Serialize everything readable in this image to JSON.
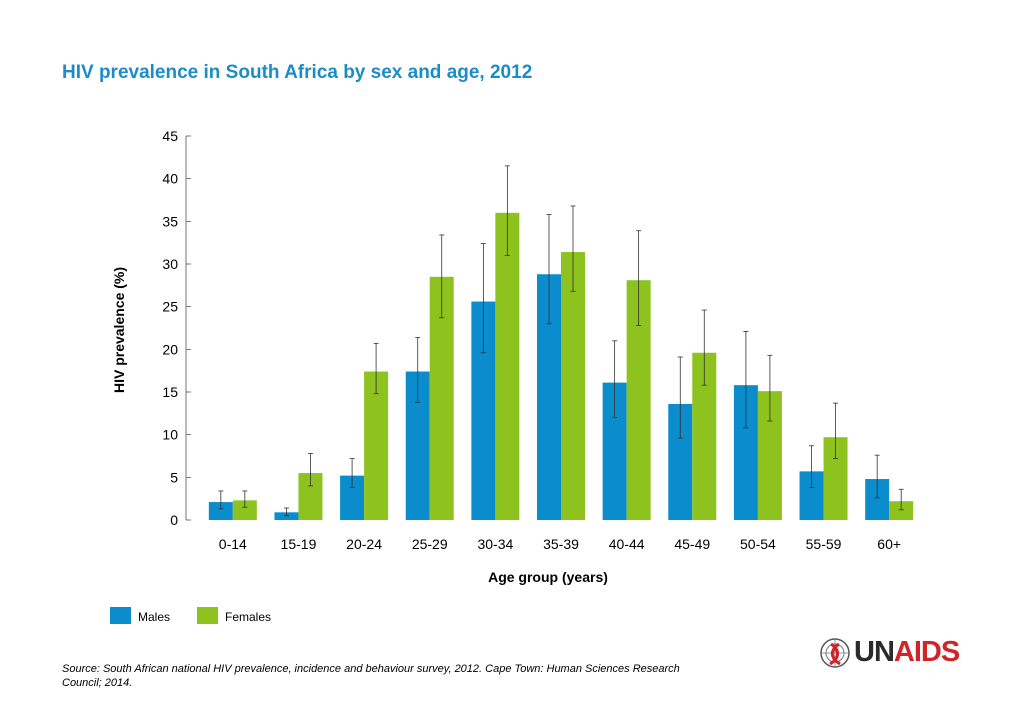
{
  "chart_data": {
    "type": "bar",
    "title": "HIV prevalence in South Africa by sex and age, 2012",
    "xlabel": "Age group (years)",
    "ylabel": "HIV prevalence (%)",
    "ylim": [
      0,
      45
    ],
    "yticks": [
      0,
      5,
      10,
      15,
      20,
      25,
      30,
      35,
      40,
      45
    ],
    "categories": [
      "0-14",
      "15-19",
      "20-24",
      "25-29",
      "30-34",
      "35-39",
      "40-44",
      "45-49",
      "50-54",
      "55-59",
      "60+"
    ],
    "series": [
      {
        "name": "Males",
        "color": "#0a8ccd",
        "values": [
          2.1,
          0.9,
          5.2,
          17.4,
          25.6,
          28.8,
          16.1,
          13.6,
          15.8,
          5.7,
          4.8
        ],
        "error_low": [
          1.3,
          0.5,
          3.8,
          13.8,
          19.6,
          23.0,
          12.0,
          9.6,
          10.8,
          3.8,
          2.6
        ],
        "error_high": [
          3.4,
          1.4,
          7.2,
          21.4,
          32.4,
          35.8,
          21.0,
          19.1,
          22.1,
          8.7,
          7.6
        ]
      },
      {
        "name": "Females",
        "color": "#8dc21f",
        "values": [
          2.3,
          5.5,
          17.4,
          28.5,
          36.0,
          31.4,
          28.1,
          19.6,
          15.1,
          9.7,
          2.2
        ],
        "error_low": [
          1.5,
          4.0,
          14.8,
          23.7,
          31.0,
          26.8,
          22.8,
          15.8,
          11.6,
          7.2,
          1.2
        ],
        "error_high": [
          3.4,
          7.8,
          20.7,
          33.4,
          41.5,
          36.8,
          33.9,
          24.6,
          19.3,
          13.7,
          3.6
        ]
      }
    ],
    "legend_position": "bottom-left",
    "grid": false
  },
  "source": "Source: South African national HIV prevalence, incidence and behaviour survey, 2012. Cape Town: Human Sciences Research Council; 2014.",
  "logo": {
    "un": "UN",
    "aids": "AIDS"
  }
}
